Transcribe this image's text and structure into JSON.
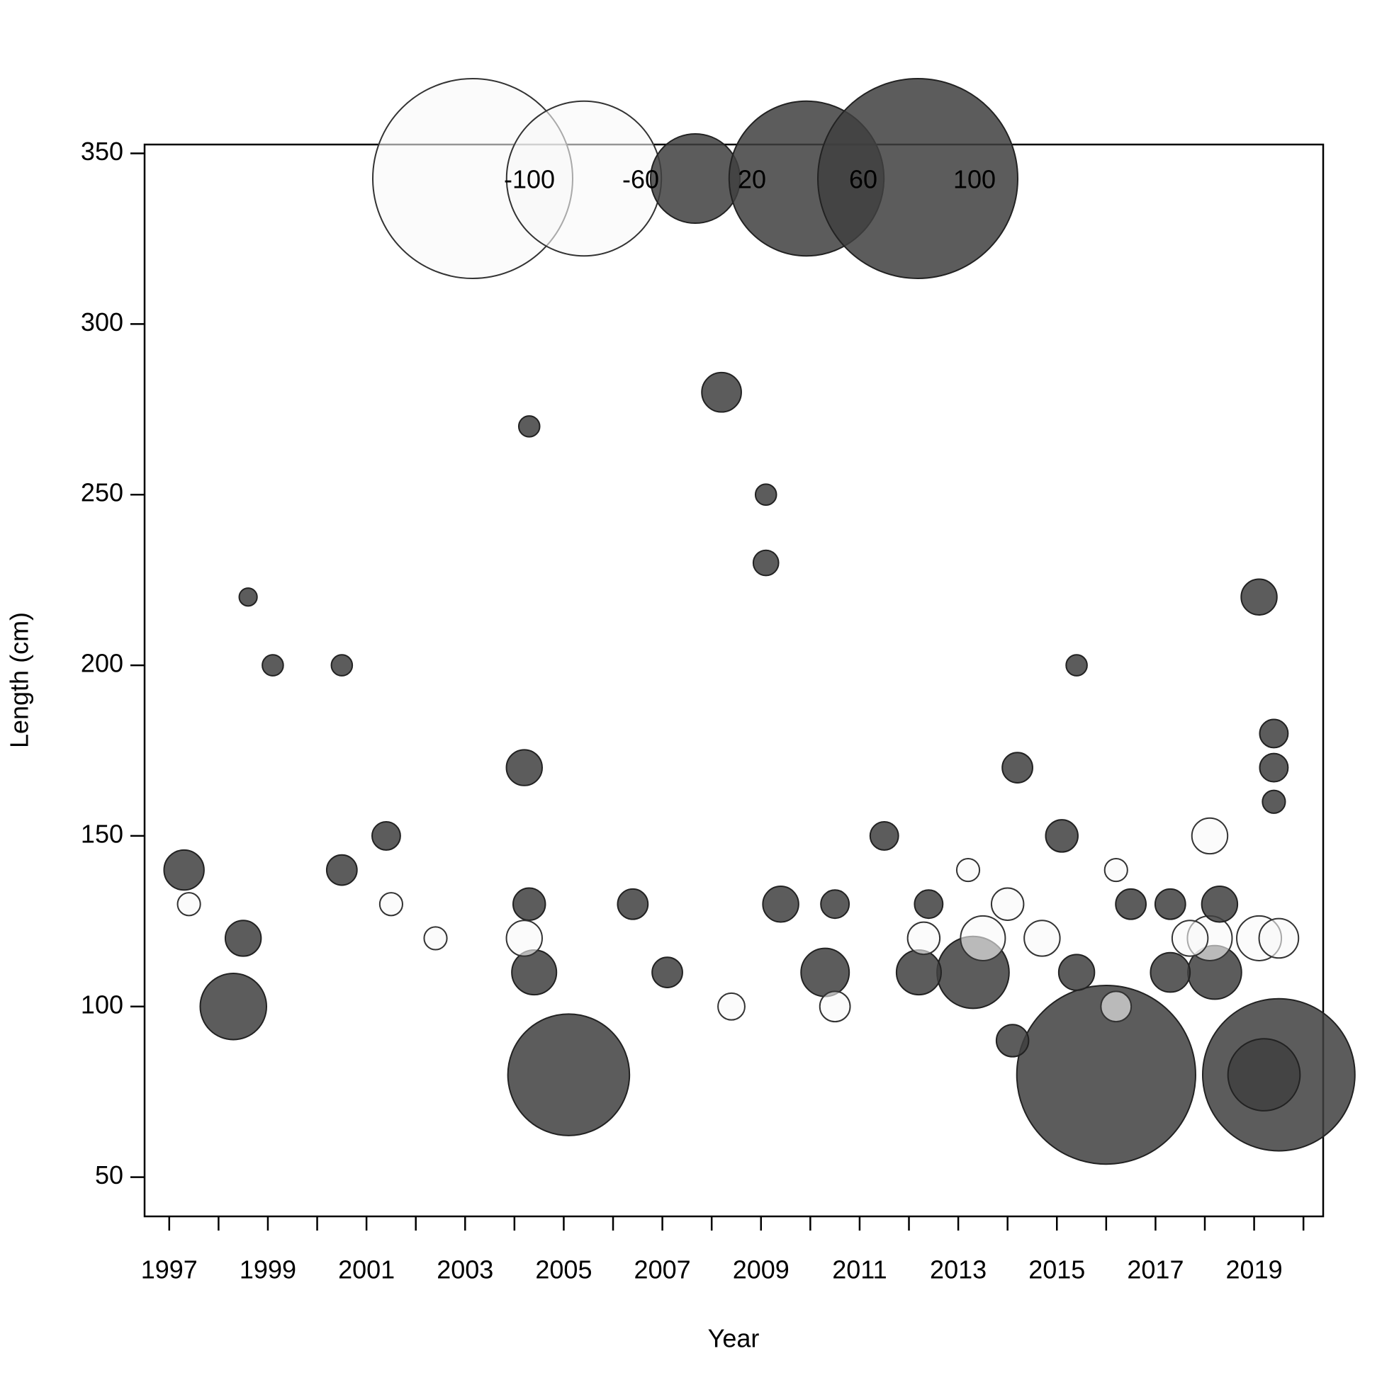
{
  "chart_data": {
    "type": "bubble",
    "x_label": "Year",
    "y_label": "Length (cm)",
    "xlim": [
      1996.5,
      2020.4
    ],
    "ylim": [
      38.5,
      352.6
    ],
    "xticks": [
      1997,
      1999,
      2001,
      2003,
      2005,
      2007,
      2009,
      2011,
      2013,
      2015,
      2017,
      2019
    ],
    "xticks_minor": [
      1998,
      2000,
      2002,
      2004,
      2006,
      2008,
      2010,
      2012,
      2014,
      2016,
      2018,
      2020
    ],
    "yticks": [
      50,
      100,
      150,
      200,
      250,
      300,
      350
    ],
    "positive_color": "#404040",
    "negative_color": "#f8f8f8",
    "legend": {
      "values": [
        -100,
        -60,
        20,
        60,
        100
      ],
      "position": "top"
    },
    "x": [
      1998.3,
      1997.3,
      2000.5,
      2005.1,
      2016.0,
      2019.5,
      2019.2,
      2013.3,
      2018.2,
      2012.2,
      2010.3,
      2004.4,
      2015.4,
      2017.3,
      2008.2,
      2019.1,
      2014.1,
      2015.1,
      2004.2,
      2001.4,
      1998.5,
      2007.1,
      2013.5,
      2018.1,
      2019.1,
      2018.1,
      2016.2,
      2010.5,
      2008.4,
      2017.7,
      2014.0,
      2014.7,
      1999.1,
      2000.5,
      1998.6,
      2009.1,
      2009.1,
      2004.3,
      2019.4,
      2019.4,
      2019.4,
      2014.2,
      2015.4,
      2004.3,
      2006.4,
      2009.4,
      2010.5,
      2012.4,
      2016.5,
      2017.3,
      2018.3,
      2019.5,
      2012.3,
      2004.2,
      1997.4,
      2001.5,
      2002.4,
      2011.5,
      2013.2,
      2016.2
    ],
    "y": [
      100,
      140,
      140,
      80,
      80,
      80,
      80,
      110,
      110,
      110,
      110,
      110,
      110,
      110,
      280,
      220,
      90,
      150,
      170,
      150,
      120,
      110,
      120,
      120,
      120,
      150,
      100,
      100,
      100,
      120,
      130,
      120,
      200,
      200,
      220,
      250,
      230,
      270,
      180,
      170,
      160,
      170,
      200,
      130,
      130,
      130,
      130,
      130,
      130,
      130,
      130,
      120,
      120,
      120,
      130,
      130,
      120,
      150,
      140,
      140
    ],
    "sizes": [
      11,
      4,
      2.3,
      37,
      80,
      58,
      13,
      13,
      7.2,
      5,
      5.8,
      5,
      3.2,
      3.9,
      3.9,
      3.2,
      2.6,
      2.6,
      3.2,
      2,
      3.2,
      2.3,
      -5,
      -5,
      -5,
      -3.2,
      -2.3,
      -2.3,
      -1.8,
      -3.2,
      -2.6,
      -3.2,
      1.1,
      1.1,
      0.8,
      1.1,
      1.6,
      1.1,
      2,
      2,
      1.3,
      2.3,
      1.1,
      2.6,
      2.3,
      3.2,
      2,
      2,
      2.3,
      2.3,
      3.2,
      -3.9,
      -2.6,
      -3.2,
      -1.3,
      -1.3,
      -1.3,
      2,
      -1.3,
      -1.3
    ]
  }
}
